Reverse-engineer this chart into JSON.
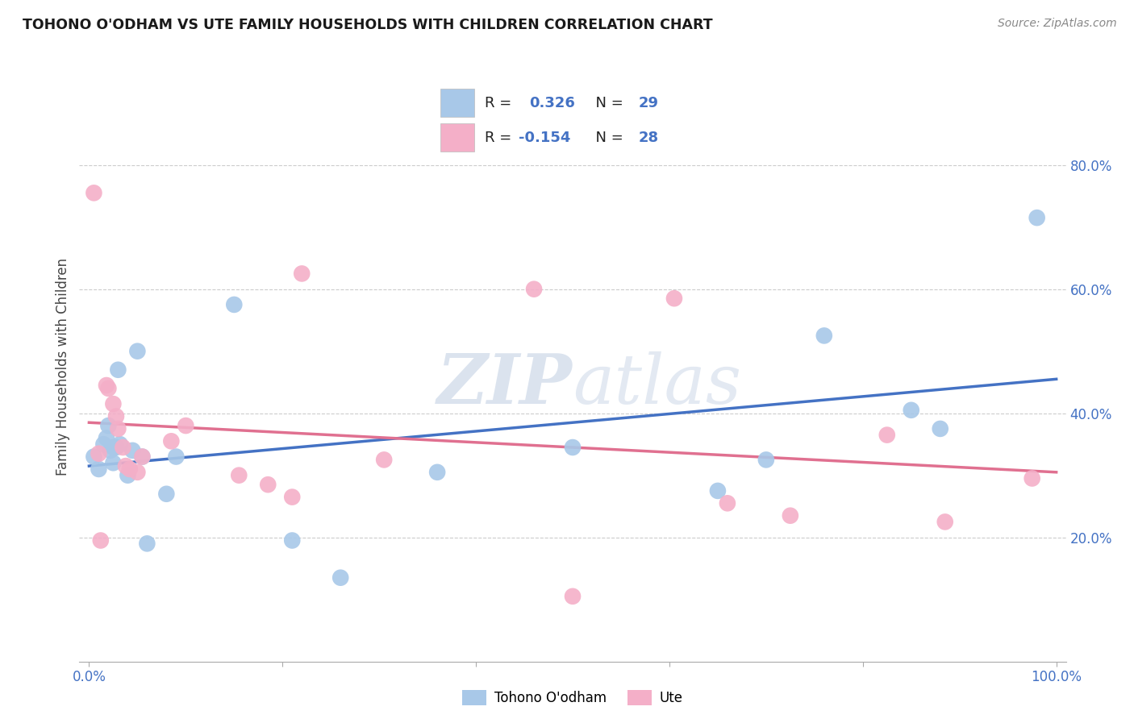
{
  "title": "TOHONO O'ODHAM VS UTE FAMILY HOUSEHOLDS WITH CHILDREN CORRELATION CHART",
  "source": "Source: ZipAtlas.com",
  "ylabel": "Family Households with Children",
  "legend_label1": "Tohono O'odham",
  "legend_label2": "Ute",
  "R1": 0.326,
  "N1": 29,
  "R2": -0.154,
  "N2": 28,
  "xlim": [
    -0.01,
    1.01
  ],
  "ylim": [
    0.0,
    0.95
  ],
  "xticks": [
    0.0,
    0.2,
    0.4,
    0.6,
    0.8,
    1.0
  ],
  "yticks": [
    0.2,
    0.4,
    0.6,
    0.8
  ],
  "xticklabels": [
    "0.0%",
    "",
    "",
    "",
    "",
    "100.0%"
  ],
  "yticklabels": [
    "20.0%",
    "40.0%",
    "60.0%",
    "80.0%"
  ],
  "color_blue": "#a8c8e8",
  "color_pink": "#f4afc8",
  "line_blue": "#4472c4",
  "line_pink": "#e07090",
  "watermark_color": "#ccd8e8",
  "blue_dots_x": [
    0.005,
    0.01,
    0.015,
    0.018,
    0.02,
    0.022,
    0.025,
    0.025,
    0.028,
    0.03,
    0.032,
    0.04,
    0.045,
    0.05,
    0.055,
    0.06,
    0.08,
    0.09,
    0.15,
    0.21,
    0.26,
    0.36,
    0.5,
    0.65,
    0.7,
    0.76,
    0.85,
    0.88,
    0.98
  ],
  "blue_dots_y": [
    0.33,
    0.31,
    0.35,
    0.36,
    0.38,
    0.34,
    0.32,
    0.345,
    0.345,
    0.47,
    0.35,
    0.3,
    0.34,
    0.5,
    0.33,
    0.19,
    0.27,
    0.33,
    0.575,
    0.195,
    0.135,
    0.305,
    0.345,
    0.275,
    0.325,
    0.525,
    0.405,
    0.375,
    0.715
  ],
  "pink_dots_x": [
    0.005,
    0.01,
    0.012,
    0.018,
    0.02,
    0.025,
    0.028,
    0.03,
    0.035,
    0.038,
    0.042,
    0.05,
    0.055,
    0.085,
    0.1,
    0.155,
    0.185,
    0.21,
    0.22,
    0.305,
    0.46,
    0.5,
    0.605,
    0.66,
    0.725,
    0.825,
    0.885,
    0.975
  ],
  "pink_dots_y": [
    0.755,
    0.335,
    0.195,
    0.445,
    0.44,
    0.415,
    0.395,
    0.375,
    0.345,
    0.315,
    0.31,
    0.305,
    0.33,
    0.355,
    0.38,
    0.3,
    0.285,
    0.265,
    0.625,
    0.325,
    0.6,
    0.105,
    0.585,
    0.255,
    0.235,
    0.365,
    0.225,
    0.295
  ],
  "blue_line_start_y": 0.315,
  "blue_line_end_y": 0.455,
  "pink_line_start_y": 0.385,
  "pink_line_end_y": 0.305
}
